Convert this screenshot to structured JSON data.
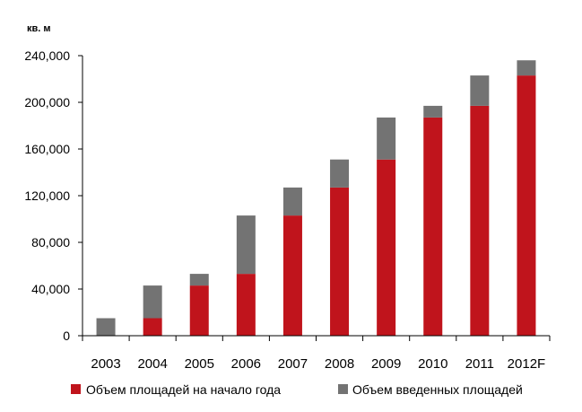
{
  "chart_data": {
    "type": "bar",
    "stacked": true,
    "unit_label": "кв. м",
    "categories": [
      "2003",
      "2004",
      "2005",
      "2006",
      "2007",
      "2008",
      "2009",
      "2010",
      "2011",
      "2012F"
    ],
    "series": [
      {
        "name": "Объем площадей на начало года",
        "color": "#C0141C",
        "values": [
          0,
          15000,
          43000,
          53000,
          103000,
          127000,
          151000,
          187000,
          197000,
          223000
        ]
      },
      {
        "name": "Объем введенных площадей",
        "color": "#737373",
        "values": [
          15000,
          28000,
          10000,
          50000,
          24000,
          24000,
          36000,
          10000,
          26000,
          13000
        ]
      }
    ],
    "y_ticks": [
      "0",
      "40,000",
      "80,000",
      "120,000",
      "160,000",
      "200,000",
      "240,000"
    ],
    "ylim": [
      0,
      240000
    ],
    "grid": false,
    "legend_position": "bottom"
  }
}
